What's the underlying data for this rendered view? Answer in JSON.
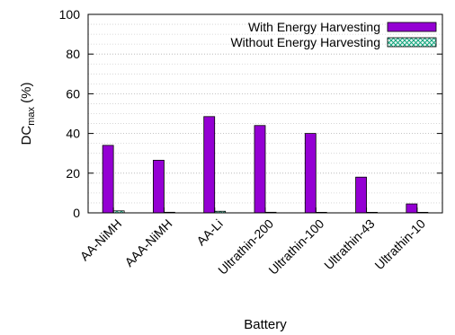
{
  "chart_data": {
    "type": "bar",
    "xlabel": "Battery",
    "ylabel_main": "DC",
    "ylabel_sub": "max",
    "ylabel_unit": " (%)",
    "ylim": [
      0,
      100
    ],
    "yticks": [
      0,
      20,
      40,
      60,
      80,
      100
    ],
    "minor_step": 5,
    "grid": true,
    "legend_position": "top-right",
    "categories": [
      "AA-NiMH",
      "AAA-NiMH",
      "AA-Li",
      "Ultrathin-200",
      "Ultrathin-100",
      "Ultrathin-43",
      "Ultrathin-10"
    ],
    "series": [
      {
        "name": "With Energy Harvesting",
        "values": [
          34,
          26.5,
          48.5,
          44,
          40,
          18,
          4.5
        ],
        "color": "#9400d3",
        "pattern": "solid"
      },
      {
        "name": "Without Energy Harvesting",
        "values": [
          1,
          0.3,
          0.8,
          0.3,
          0.2,
          0.1,
          0.05
        ],
        "color": "#009e73",
        "pattern": "crosshatch"
      }
    ]
  }
}
